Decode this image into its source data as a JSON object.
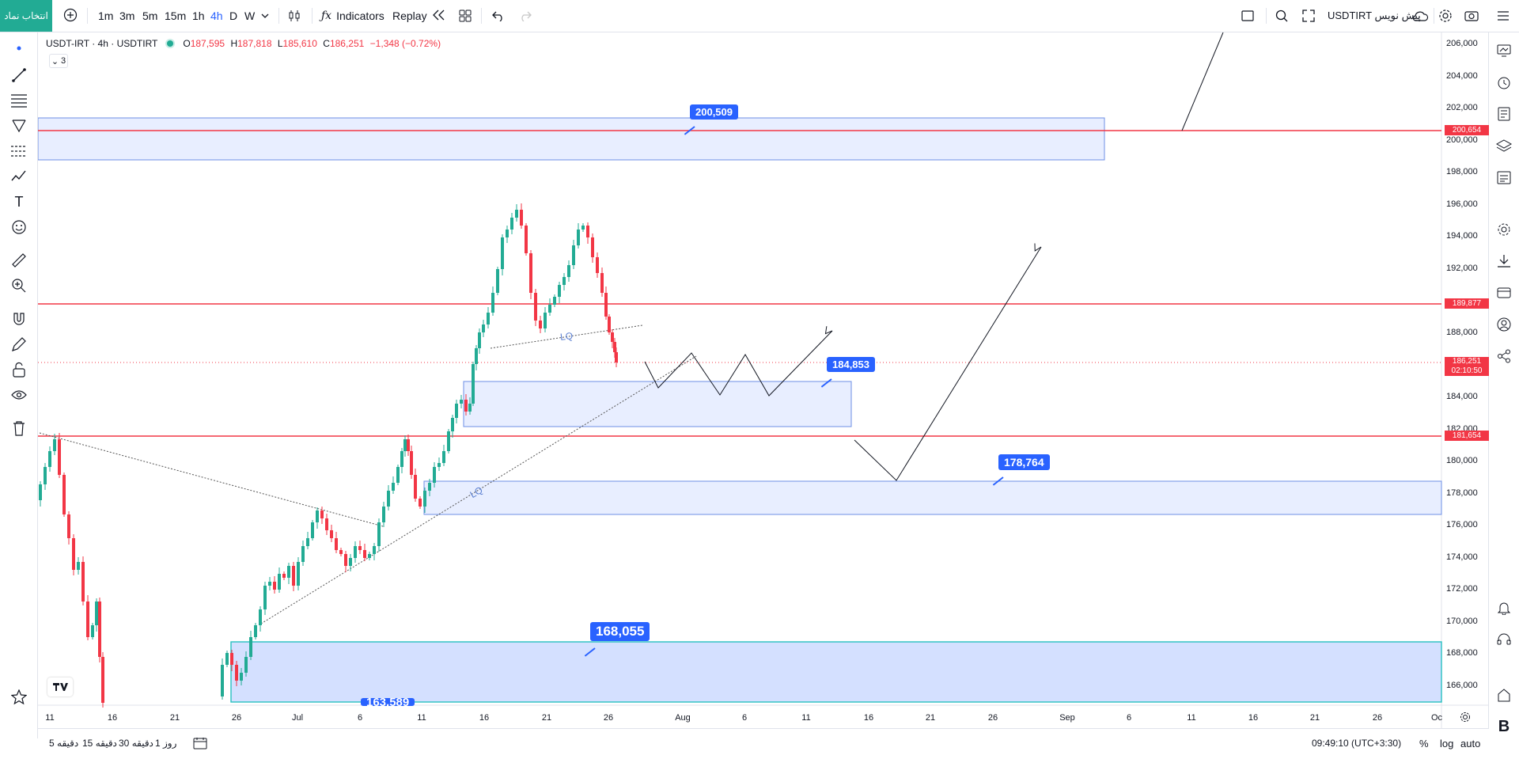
{
  "toolbar": {
    "symbol_button": "انتخاب نماد",
    "intervals": [
      "1m",
      "3m",
      "5m",
      "15m",
      "1h",
      "4h",
      "D",
      "W"
    ],
    "active_interval": "4h",
    "indicators_label": "Indicators",
    "replay_label": "Replay",
    "right_symbol": "USDTIRT پیش نویس"
  },
  "legend": {
    "title": "USDT-IRT · 4h · USDTIRT",
    "open_label": "O",
    "open": "187,595",
    "high_label": "H",
    "high": "187,818",
    "low_label": "L",
    "low": "185,610",
    "close_label": "C",
    "close": "186,251",
    "change": "−1,348 (−0.72%)",
    "collapse_count": "3"
  },
  "price_axis": [
    "206,000",
    "204,000",
    "202,000",
    "200,000",
    "198,000",
    "196,000",
    "194,000",
    "192,000",
    "188,000",
    "184,000",
    "182,000",
    "180,000",
    "178,000",
    "176,000",
    "174,000",
    "172,000",
    "170,000",
    "168,000",
    "166,000"
  ],
  "price_badges": {
    "line_200": "200,654",
    "line_189": "189,877",
    "last_price": "186,251",
    "countdown": "02:10:50",
    "line_181": "181,654"
  },
  "time_axis": [
    "11",
    "16",
    "21",
    "26",
    "Jul",
    "6",
    "11",
    "16",
    "21",
    "26",
    "Aug",
    "6",
    "11",
    "16",
    "21",
    "26",
    "Sep",
    "6",
    "11",
    "16",
    "21",
    "26",
    "Oc"
  ],
  "callouts": {
    "c1": "200,509",
    "c2": "184,853",
    "c3": "178,764",
    "c4": "168,055",
    "c5": "163,589"
  },
  "annotations": {
    "lq_top": "LQ",
    "lq_trend": "LQ"
  },
  "bottom": {
    "ranges": [
      "5 دقیقه",
      "15 دقیقه",
      "30 دقیقه",
      "1 روز"
    ],
    "clock": "09:49:10 (UTC+3:30)",
    "percent": "%",
    "log": "log",
    "auto": "auto"
  },
  "colors": {
    "up": "#22ab94",
    "down": "#f23645",
    "zone_fill": "#e8eeff",
    "zone_border": "#6d8fe6",
    "callout": "#2962ff",
    "symbol_button_bg": "#22ab94"
  }
}
